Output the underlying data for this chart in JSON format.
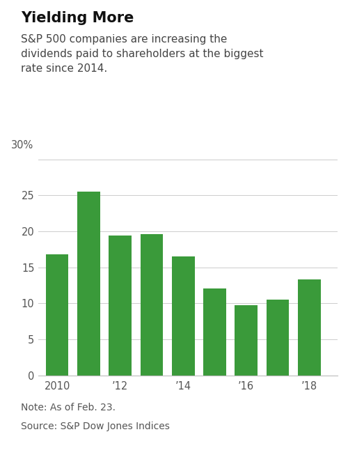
{
  "title": "Yielding More",
  "subtitle": "S&P 500 companies are increasing the\ndividends paid to shareholders at the biggest\nrate since 2014.",
  "years": [
    2010,
    2011,
    2012,
    2013,
    2014,
    2015,
    2016,
    2017,
    2018
  ],
  "values": [
    16.8,
    25.5,
    19.4,
    19.6,
    16.5,
    12.1,
    9.7,
    10.5,
    13.3
  ],
  "bar_color": "#3a9a3a",
  "ylim": [
    0,
    30
  ],
  "yticks": [
    0,
    5,
    10,
    15,
    20,
    25
  ],
  "ytick_top_label": "30%",
  "x_tick_labels": [
    "2010",
    "’12",
    "’14",
    "’16",
    "’18"
  ],
  "x_tick_positions": [
    2010,
    2012,
    2014,
    2016,
    2018
  ],
  "note": "Note: As of Feb. 23.",
  "source": "Source: S&P Dow Jones Indices",
  "background_color": "#ffffff",
  "title_fontsize": 15,
  "subtitle_fontsize": 11,
  "axis_fontsize": 10.5,
  "note_fontsize": 10
}
